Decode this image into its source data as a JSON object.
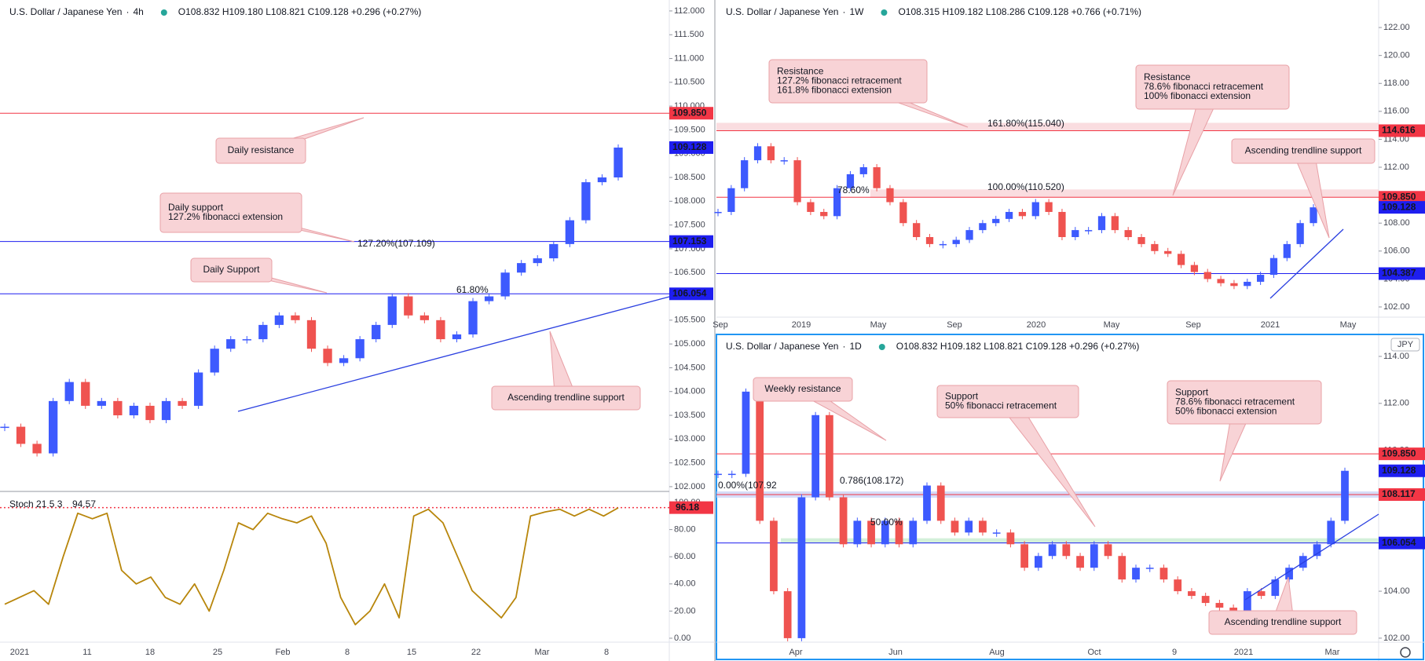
{
  "candle_colors": {
    "up": "#3d5afe",
    "down": "#ef5350"
  },
  "currency": "JPY",
  "panels": [
    {
      "symbol": "U.S. Dollar / Japanese Yen",
      "interval": "4h",
      "ohlc": "O108.832 H109.180 L108.821 C109.128 +0.296 (+0.27%)",
      "ylim": [
        101.9,
        112.23
      ],
      "yticks": [
        {
          "value": 102,
          "label": "102.000"
        },
        {
          "value": 102.5,
          "label": "102.500"
        },
        {
          "value": 103,
          "label": "103.000"
        },
        {
          "value": 103.5,
          "label": "103.500"
        },
        {
          "value": 104,
          "label": "104.000"
        },
        {
          "value": 104.5,
          "label": "104.500"
        },
        {
          "value": 105,
          "label": "105.000"
        },
        {
          "value": 105.5,
          "label": "105.500"
        },
        {
          "value": 106,
          "label": "106.000"
        },
        {
          "value": 106.5,
          "label": "106.500"
        },
        {
          "value": 107,
          "label": "107.000"
        },
        {
          "value": 107.5,
          "label": "107.500"
        },
        {
          "value": 108,
          "label": "108.000"
        },
        {
          "value": 108.5,
          "label": "108.500"
        },
        {
          "value": 109,
          "label": "109.000"
        },
        {
          "value": 109.5,
          "label": "109.500"
        },
        {
          "value": 110,
          "label": "110.000"
        },
        {
          "value": 110.5,
          "label": "110.500"
        },
        {
          "value": 111,
          "label": "111.000"
        },
        {
          "value": 111.5,
          "label": "111.500"
        },
        {
          "value": 112,
          "label": "112.000"
        }
      ],
      "dates": [
        "2021",
        "11",
        "18",
        "25",
        "Feb",
        "8",
        "15",
        "22",
        "Mar",
        "8"
      ],
      "price_path": [
        103.26,
        102.9,
        102.7,
        103.8,
        104.2,
        103.7,
        103.8,
        103.5,
        103.7,
        103.4,
        103.8,
        103.7,
        104.4,
        104.9,
        105.1,
        105.1,
        105.4,
        105.6,
        105.5,
        104.9,
        104.6,
        104.7,
        105.1,
        105.4,
        106.0,
        105.6,
        105.5,
        105.1,
        105.2,
        105.9,
        106.0,
        106.5,
        106.7,
        106.8,
        107.1,
        107.6,
        108.4,
        108.5,
        109.128
      ],
      "price_tags": [
        {
          "value": 109.85,
          "label": "109.850",
          "color": "#f23645"
        },
        {
          "value": 109.128,
          "label": "109.128",
          "color": "#1e1ef0"
        },
        {
          "value": 107.153,
          "label": "107.153",
          "color": "#1e1ef0"
        },
        {
          "value": 106.054,
          "label": "106.054",
          "color": "#1e1ef0"
        }
      ],
      "annotations": [
        {
          "lines": [
            "Daily resistance"
          ]
        },
        {
          "lines": [
            "Daily support",
            "127.2% fibonacci extension"
          ]
        },
        {
          "lines": [
            "Daily Support"
          ]
        },
        {
          "lines": [
            "Ascending trendline support"
          ]
        }
      ],
      "fib_labels": [
        "127.20%(107.109)",
        "61.80%"
      ]
    },
    {
      "symbol": "U.S. Dollar / Japanese Yen",
      "interval": "1W",
      "ohlc": "O108.315 H109.182 L108.286 C109.128 +0.766 (+0.71%)",
      "ylim": [
        101.1,
        123.97
      ],
      "yticks": [
        {
          "value": 102,
          "label": "102.00"
        },
        {
          "value": 104,
          "label": "104.00"
        },
        {
          "value": 106,
          "label": "106.00"
        },
        {
          "value": 108,
          "label": "108.00"
        },
        {
          "value": 110,
          "label": "110.00"
        },
        {
          "value": 112,
          "label": "112.00"
        },
        {
          "value": 114,
          "label": "114.00"
        },
        {
          "value": 116,
          "label": "116.00"
        },
        {
          "value": 118,
          "label": "118.00"
        },
        {
          "value": 120,
          "label": "120.00"
        },
        {
          "value": 122,
          "label": "122.00"
        }
      ],
      "dates": [
        "Sep",
        "2019",
        "May",
        "Sep",
        "2020",
        "May",
        "Sep",
        "2021",
        "May"
      ],
      "price_path": [
        108.8,
        110.5,
        112.5,
        113.5,
        112.5,
        112.5,
        109.5,
        108.8,
        108.5,
        110.5,
        111.5,
        112,
        110.5,
        109.5,
        108,
        107,
        106.5,
        106.5,
        106.8,
        107.5,
        108,
        108.3,
        108.8,
        108.5,
        109.5,
        108.8,
        107,
        107.5,
        107.5,
        108.5,
        107.5,
        107,
        106.5,
        106,
        105.8,
        105,
        104.5,
        104,
        103.7,
        103.5,
        103.8,
        104.3,
        105.5,
        106.5,
        108,
        109.128
      ],
      "price_tags": [
        {
          "value": 114.616,
          "label": "114.616",
          "color": "#f23645"
        },
        {
          "value": 109.85,
          "label": "109.850",
          "color": "#f23645"
        },
        {
          "value": 109.128,
          "label": "109.128",
          "color": "#1e1ef0"
        },
        {
          "value": 104.387,
          "label": "104.387",
          "color": "#1e1ef0"
        }
      ],
      "annotations": [
        {
          "lines": [
            "Resistance",
            "127.2% fibonacci retracement",
            "161.8% fibonacci extension"
          ]
        },
        {
          "lines": [
            "Resistance",
            "78.6% fibonacci retracement",
            "100% fibonacci extension"
          ]
        },
        {
          "lines": [
            "Ascending trendline support"
          ]
        }
      ],
      "fib_labels": [
        "161.80%(115.040)",
        "78.60%",
        "100.00%(110.520)"
      ]
    },
    {
      "symbol": "U.S. Dollar / Japanese Yen",
      "interval": "1D",
      "ohlc": "O108.832 H109.182 L108.821 C109.128 +0.296 (+0.27%)",
      "ylim": [
        101.83,
        114.97
      ],
      "yticks": [
        {
          "value": 102,
          "label": "102.00"
        },
        {
          "value": 104,
          "label": "104.00"
        },
        {
          "value": 106,
          "label": "106.00"
        },
        {
          "value": 108,
          "label": "108.00"
        },
        {
          "value": 110,
          "label": "110.00"
        },
        {
          "value": 112,
          "label": "112.00"
        },
        {
          "value": 114,
          "label": "114.00"
        }
      ],
      "dates": [
        "Apr",
        "Jun",
        "Aug",
        "Oct",
        "9",
        "2021",
        "Mar"
      ],
      "price_path": [
        109,
        109,
        112.5,
        107,
        104,
        102,
        108,
        111.5,
        108,
        106,
        107,
        106,
        107,
        106,
        107,
        108.5,
        107,
        106.5,
        107,
        106.5,
        106.5,
        106,
        105,
        105.5,
        106,
        105.5,
        105,
        106,
        105.5,
        104.5,
        105,
        105,
        104.5,
        104,
        103.8,
        103.5,
        103.3,
        103,
        104,
        103.8,
        104.5,
        105,
        105.5,
        106,
        107,
        109.128
      ],
      "price_tags": [
        {
          "value": 109.85,
          "label": "109.850",
          "color": "#f23645"
        },
        {
          "value": 109.128,
          "label": "109.128",
          "color": "#1e1ef0"
        },
        {
          "value": 108.117,
          "label": "108.117",
          "color": "#f23645"
        },
        {
          "value": 106.054,
          "label": "106.054",
          "color": "#1e1ef0"
        }
      ],
      "annotations": [
        {
          "lines": [
            "Weekly resistance"
          ]
        },
        {
          "lines": [
            "Support",
            "50% fibonacci retracement"
          ]
        },
        {
          "lines": [
            "Support",
            "78.6% fibonacci retracement",
            "50% fibonacci extension"
          ]
        },
        {
          "lines": [
            "Ascending trendline support"
          ]
        }
      ],
      "fib_labels": [
        "0.786(108.172)",
        "0.00%(107.92",
        "50.00%"
      ]
    }
  ],
  "stoch": {
    "title": "Stoch 21 5 3",
    "value_label": "94.57",
    "color": "#b8860b",
    "ylim": [
      -2.9,
      108.1
    ],
    "yticks": [
      {
        "value": 0,
        "label": "0.00"
      },
      {
        "value": 20,
        "label": "20.00"
      },
      {
        "value": 40,
        "label": "40.00"
      },
      {
        "value": 60,
        "label": "60.00"
      },
      {
        "value": 80,
        "label": "80.00"
      },
      {
        "value": 100,
        "label": "100.00"
      }
    ],
    "values": [
      25,
      30,
      35,
      25,
      60,
      92,
      88,
      92,
      50,
      40,
      45,
      30,
      25,
      40,
      20,
      50,
      85,
      80,
      92,
      88,
      85,
      90,
      70,
      30,
      10,
      20,
      40,
      15,
      90,
      95,
      85,
      60,
      35,
      25,
      15,
      30,
      90,
      93,
      95,
      90,
      95,
      90,
      96
    ],
    "tag": {
      "value": 96.18,
      "label": "96.18",
      "color": "#f23645"
    }
  }
}
